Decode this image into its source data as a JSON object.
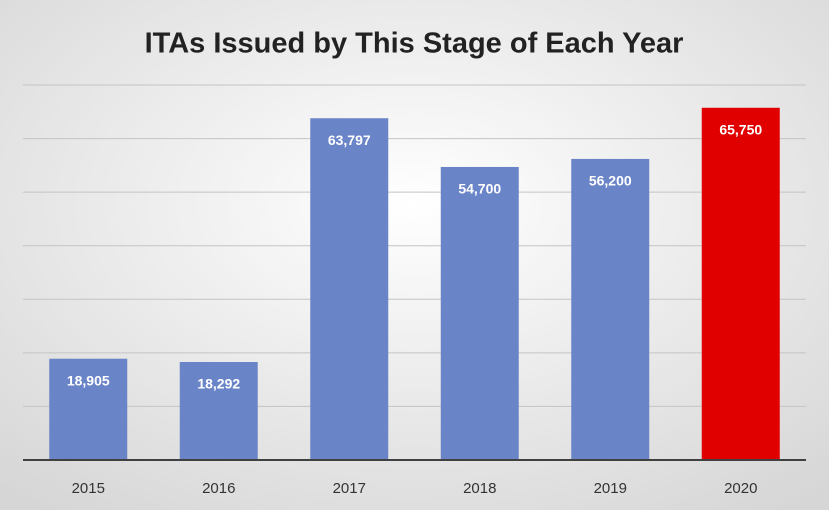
{
  "chart_data": {
    "type": "bar",
    "title": "ITAs Issued by This Stage of Each Year",
    "categories": [
      "2015",
      "2016",
      "2017",
      "2018",
      "2019",
      "2020"
    ],
    "values": [
      18905,
      18292,
      63797,
      54700,
      56200,
      65750
    ],
    "value_labels": [
      "18,905",
      "18,292",
      "63,797",
      "54,700",
      "56,200",
      "65,750"
    ],
    "colors": [
      "#6a84c8",
      "#6a84c8",
      "#6a84c8",
      "#6a84c8",
      "#6a84c8",
      "#e00000"
    ],
    "ylim": [
      0,
      70000
    ],
    "yticks": [
      0,
      10000,
      20000,
      30000,
      40000,
      50000,
      60000,
      70000
    ],
    "grid": true
  }
}
